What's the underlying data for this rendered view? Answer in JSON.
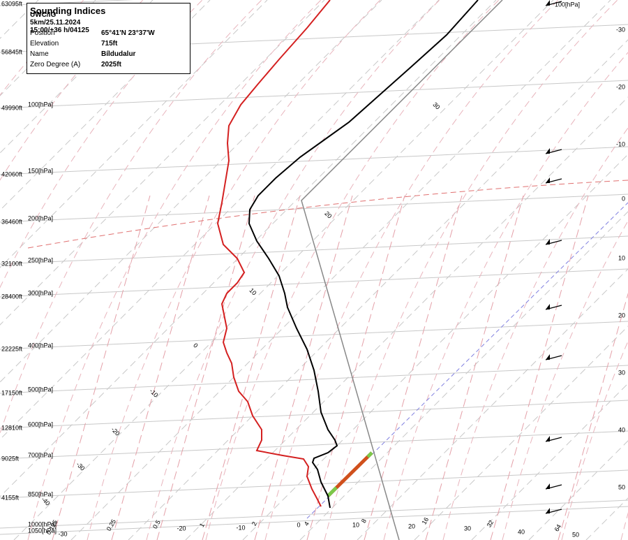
{
  "info_box": {
    "title": "Sounding Indices",
    "subtitle": "UWC/IG 5km/25.11.2024 15:00/+36 h/04125",
    "rows": [
      {
        "label": "Position",
        "value": "65°41'N 23°37'W"
      },
      {
        "label": "Elevation",
        "value": "715ft"
      },
      {
        "label": "Name",
        "value": "Bíldudalur"
      },
      {
        "label": "Zero Degree (A)",
        "value": "2025ft"
      }
    ]
  },
  "left_labels": [
    {
      "height": "63095ft"
    },
    {
      "height": "56845ft"
    },
    {
      "height": "49990ft",
      "pressure": "100[hPa]"
    },
    {
      "height": "42060ft",
      "pressure": "150[hPa]"
    },
    {
      "height": "36460ft",
      "pressure": "200[hPa]"
    },
    {
      "height": "32100ft",
      "pressure": "250[hPa]"
    },
    {
      "height": "28400ft",
      "pressure": "300[hPa]"
    },
    {
      "height": "22225ft",
      "pressure": "400[hPa]"
    },
    {
      "height": "17150ft",
      "pressure": "500[hPa]"
    },
    {
      "height": "12810ft",
      "pressure": "600[hPa]"
    },
    {
      "height": "9025ft",
      "pressure": "700[hPa]"
    },
    {
      "height": "4155ft",
      "pressure": "850[hPa]"
    },
    {
      "pressure": "1000[hPa]"
    },
    {
      "pressure": "1050[hPa]"
    }
  ],
  "top_right_label": "100[hPa]",
  "right_labels": [
    "-30",
    "-20",
    "-10",
    "0",
    "10",
    "20",
    "30",
    "40",
    "50"
  ],
  "mixing_ratio_labels": [
    "0.125",
    "0.25",
    "0.5",
    "1",
    "2",
    "4",
    "8",
    "16",
    "32",
    "64"
  ],
  "bottom_temperature_labels": [
    "-30",
    "-20",
    "-10",
    "0",
    "10",
    "20",
    "30",
    "40",
    "50"
  ],
  "isotherm_labels": [
    "30",
    "20",
    "10",
    "0",
    "-10",
    "-20",
    "-30",
    "-40"
  ]
}
